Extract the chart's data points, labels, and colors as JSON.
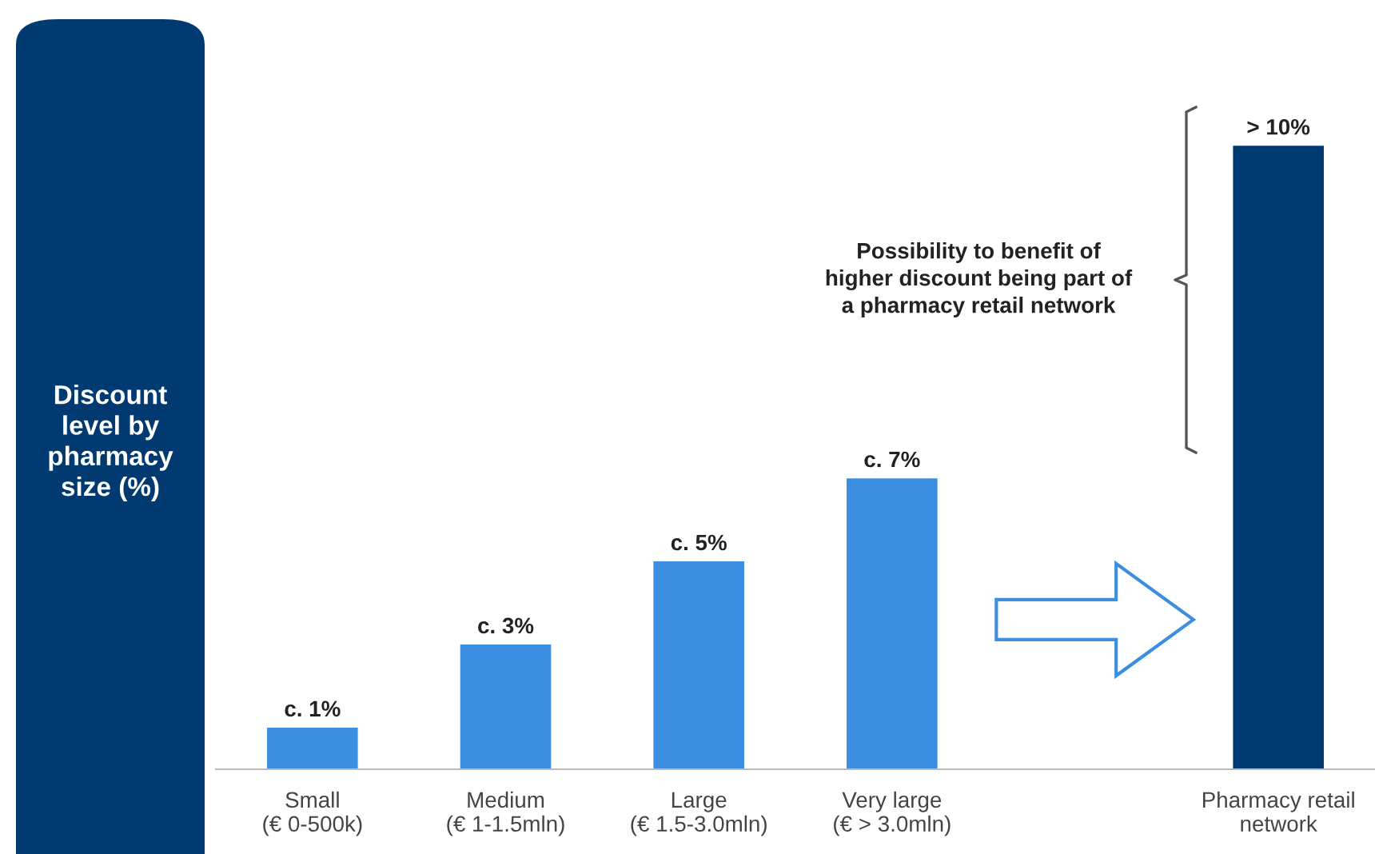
{
  "chart_data": {
    "type": "bar",
    "ylabel": "Discount\nlevel by\npharmacy\nsize (%)",
    "categories": [
      "Small\n(€ 0-500k)",
      "Medium\n(€ 1-1.5mln)",
      "Large\n(€ 1.5-3.0mln)",
      "Very large\n(€ > 3.0mln)",
      null,
      "Pharmacy retail\nnetwork"
    ],
    "values": [
      1,
      3,
      5,
      7,
      null,
      15
    ],
    "value_labels": [
      "c. 1%",
      "c. 3%",
      "c. 5%",
      "c. 7%",
      null,
      "> 10%"
    ],
    "colors": [
      "#3b8ee0",
      "#3b8ee0",
      "#3b8ee0",
      "#3b8ee0",
      "#3b8ee0",
      "#003a70"
    ],
    "annotations": [
      "Possibility to benefit of\nhigher discount being part of\na pharmacy retail network"
    ],
    "grid": false,
    "legend": false
  }
}
